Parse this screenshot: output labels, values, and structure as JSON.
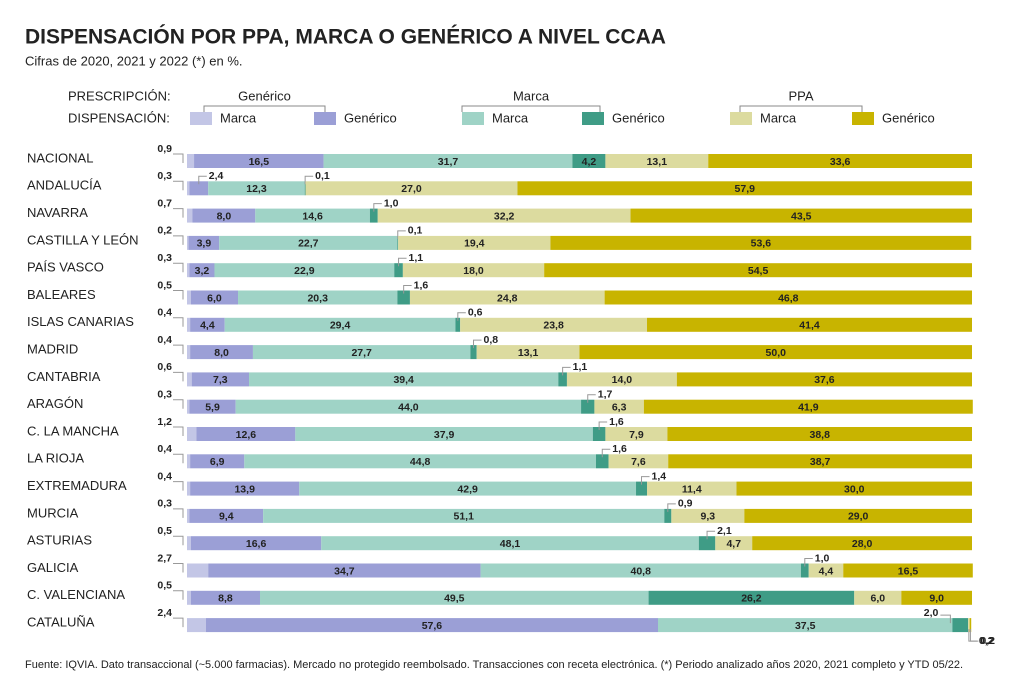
{
  "chart_data": {
    "type": "stacked_bar",
    "orientation": "horizontal",
    "title": "DISPENSACIÓN POR PPA, MARCA O GENÉRICO A NIVEL CCAA",
    "subtitle": "Cifras de 2020, 2021 y 2022 (*) en %.",
    "legend_row_labels": [
      "PRESCRIPCIÓN:",
      "DISPENSACIÓN:"
    ],
    "prescription_groups": [
      "Genérico",
      "Marca",
      "PPA"
    ],
    "footnote": "Fuente: IQVIA. Dato transaccional (~5.000 farmacias). Mercado no protegido reembolsado. Transacciones con receta electrónica. (*) Periodo analizado años 2020, 2021 completo y YTD 05/22.",
    "xlim": [
      0,
      100
    ],
    "categories": [
      "NACIONAL",
      "ANDALUCÍA",
      "NAVARRA",
      "CASTILLA Y LEÓN",
      "PAÍS VASCO",
      "BALEARES",
      "ISLAS CANARIAS",
      "MADRID",
      "CANTABRIA",
      "ARAGÓN",
      "C. LA MANCHA",
      "LA RIOJA",
      "EXTREMADURA",
      "MURCIA",
      "ASTURIAS",
      "GALICIA",
      "C. VALENCIANA",
      "CATALUÑA"
    ],
    "series": [
      {
        "name": "Marca",
        "color": "#c3c6e6",
        "values": [
          0.9,
          0.3,
          0.7,
          0.2,
          0.3,
          0.5,
          0.4,
          0.4,
          0.6,
          0.3,
          1.2,
          0.4,
          0.4,
          0.3,
          0.5,
          2.7,
          0.5,
          2.4
        ],
        "value_labels": [
          "0,9",
          "0,3",
          "0,7",
          "0,2",
          "0,3",
          "0,5",
          "0,4",
          "0,4",
          "0,6",
          "0,3",
          "1,2",
          "0,4",
          "0,4",
          "0,3",
          "0,5",
          "2,7",
          "0,5",
          "2,4"
        ]
      },
      {
        "name": "Genérico",
        "color": "#9b9fd6",
        "values": [
          16.5,
          2.4,
          8.0,
          3.9,
          3.2,
          6.0,
          4.4,
          8.0,
          7.3,
          5.9,
          12.6,
          6.9,
          13.9,
          9.4,
          16.6,
          34.7,
          8.8,
          57.6
        ],
        "value_labels": [
          "16,5",
          "2,4",
          "8,0",
          "3,9",
          "3,2",
          "6,0",
          "4,4",
          "8,0",
          "7,3",
          "5,9",
          "12,6",
          "6,9",
          "13,9",
          "9,4",
          "16,6",
          "34,7",
          "8,8",
          "57,6"
        ]
      },
      {
        "name": "Marca",
        "color": "#9fd3c6",
        "values": [
          31.7,
          12.3,
          14.6,
          22.7,
          22.9,
          20.3,
          29.4,
          27.7,
          39.4,
          44.0,
          37.9,
          44.8,
          42.9,
          51.1,
          48.1,
          40.8,
          49.5,
          37.5
        ],
        "value_labels": [
          "31,7",
          "12,3",
          "14,6",
          "22,7",
          "22,9",
          "20,3",
          "29,4",
          "27,7",
          "39,4",
          "44,0",
          "37,9",
          "44,8",
          "42,9",
          "51,1",
          "48,1",
          "40,8",
          "49,5",
          "37,5"
        ]
      },
      {
        "name": "Genérico",
        "color": "#3f9c86",
        "values": [
          4.2,
          0.1,
          1.0,
          0.1,
          1.1,
          1.6,
          0.6,
          0.8,
          1.1,
          1.7,
          1.6,
          1.6,
          1.4,
          0.9,
          2.1,
          1.0,
          26.2,
          2.0
        ],
        "value_labels": [
          "4,2",
          "0,1",
          "1,0",
          "0,1",
          "1,1",
          "1,6",
          "0,6",
          "0,8",
          "1,1",
          "1,7",
          "1,6",
          "1,6",
          "1,4",
          "0,9",
          "2,1",
          "1,0",
          "26,2",
          "2,0"
        ]
      },
      {
        "name": "Marca",
        "color": "#dcdb9f",
        "values": [
          13.1,
          27.0,
          32.2,
          19.4,
          18.0,
          24.8,
          23.8,
          13.1,
          14.0,
          6.3,
          7.9,
          7.6,
          11.4,
          9.3,
          4.7,
          4.4,
          6.0,
          0.2
        ],
        "value_labels": [
          "13,1",
          "27,0",
          "32,2",
          "19,4",
          "18,0",
          "24,8",
          "23,8",
          "13,1",
          "14,0",
          "6,3",
          "7,9",
          "7,6",
          "11,4",
          "9,3",
          "4,7",
          "4,4",
          "6,0",
          "0,2"
        ]
      },
      {
        "name": "Genérico",
        "color": "#c8b400",
        "values": [
          33.6,
          57.9,
          43.5,
          53.6,
          54.5,
          46.8,
          41.4,
          50.0,
          37.6,
          41.9,
          38.8,
          38.7,
          30.0,
          29.0,
          28.0,
          16.5,
          9.0,
          0.2
        ],
        "value_labels": [
          "33,6",
          "57,9",
          "43,5",
          "53,6",
          "54,5",
          "46,8",
          "41,4",
          "50,0",
          "37,6",
          "41,9",
          "38,8",
          "38,7",
          "30,0",
          "29,0",
          "28,0",
          "16,5",
          "9,0",
          "0,2"
        ]
      }
    ]
  }
}
